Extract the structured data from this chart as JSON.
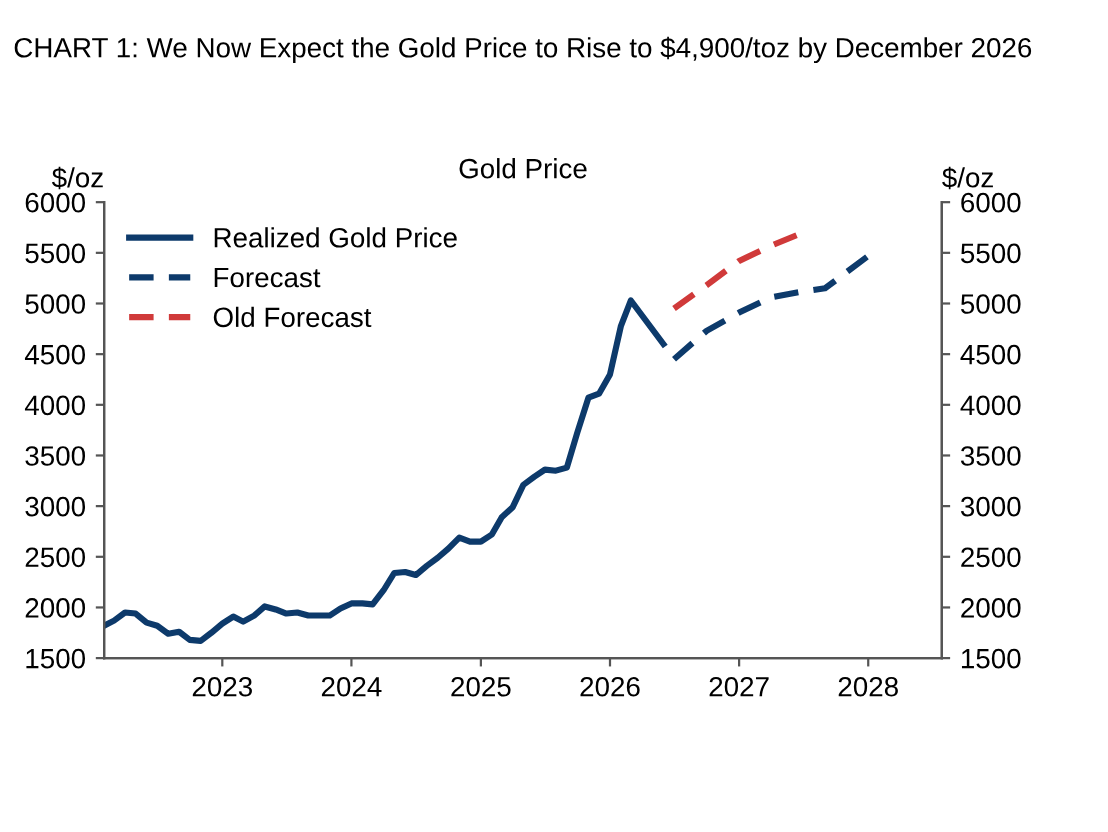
{
  "chart_data": {
    "type": "line",
    "title": "CHART 1: We Now Expect the Gold Price to Rise to $4,900/toz by December 2026",
    "subtitle": "Gold Price",
    "ylabel": "$/oz",
    "y2label": "$/oz",
    "xlim": [
      "2022-02-01",
      "2028-07-27"
    ],
    "xticks": [
      {
        "value": "2023-01-01",
        "label": "2023"
      },
      {
        "value": "2024-01-01",
        "label": "2024"
      },
      {
        "value": "2025-01-01",
        "label": "2025"
      },
      {
        "value": "2026-01-01",
        "label": "2026"
      },
      {
        "value": "2027-01-01",
        "label": "2027"
      },
      {
        "value": "2028-01-01",
        "label": "2028"
      }
    ],
    "ylim": [
      1500,
      6000
    ],
    "yticks": [
      1500,
      2000,
      2500,
      3000,
      3500,
      4000,
      4500,
      5000,
      5500,
      6000
    ],
    "y2lim": [
      1500,
      6000
    ],
    "y2ticks": [
      1500,
      2000,
      2500,
      3000,
      3500,
      4000,
      4500,
      5000,
      5500,
      6000
    ],
    "grid": false,
    "legend": "top left",
    "marker": "none",
    "series": [
      {
        "name": "Realized Gold Price",
        "color": "#0d3a6b",
        "line_style": "solid",
        "x": [
          "2022-02",
          "2022-03",
          "2022-04",
          "2022-05",
          "2022-06",
          "2022-07",
          "2022-08",
          "2022-09",
          "2022-10",
          "2022-11",
          "2022-12",
          "2023-01",
          "2023-02",
          "2023-03",
          "2023-04",
          "2023-05",
          "2023-06",
          "2023-07",
          "2023-08",
          "2023-09",
          "2023-10",
          "2023-11",
          "2023-12",
          "2024-01",
          "2024-02",
          "2024-03",
          "2024-04",
          "2024-05",
          "2024-06",
          "2024-07",
          "2024-08",
          "2024-09",
          "2024-10",
          "2024-11",
          "2024-12",
          "2025-01",
          "2025-02",
          "2025-03",
          "2025-04",
          "2025-05",
          "2025-06",
          "2025-07",
          "2025-08",
          "2025-09",
          "2025-10",
          "2025-11",
          "2025-12",
          "2026-01",
          "2026-02",
          "2026-03",
          "2026-06"
        ],
        "values": [
          1820,
          1870,
          1950,
          1940,
          1850,
          1820,
          1740,
          1760,
          1680,
          1670,
          1750,
          1840,
          1910,
          1860,
          1920,
          2010,
          1980,
          1940,
          1950,
          1920,
          1920,
          1920,
          1990,
          2040,
          2040,
          2030,
          2170,
          2340,
          2350,
          2320,
          2410,
          2490,
          2580,
          2690,
          2650,
          2650,
          2720,
          2890,
          2990,
          3210,
          3290,
          3360,
          3350,
          3380,
          3730,
          4070,
          4110,
          4300,
          4780,
          5030,
          4600
        ]
      },
      {
        "name": "Forecast",
        "color": "#0d3a6b",
        "line_style": "dashed",
        "x": [
          "2026-07",
          "2026-10",
          "2027-01",
          "2027-04",
          "2027-07",
          "2027-09",
          "2028-01"
        ],
        "values": [
          4450,
          4730,
          4910,
          5060,
          5120,
          5150,
          5470
        ]
      },
      {
        "name": "Old Forecast",
        "color": "#d03a3a",
        "line_style": "dashed",
        "x": [
          "2026-07",
          "2026-10",
          "2027-01",
          "2027-04",
          "2027-07"
        ],
        "values": [
          4950,
          5180,
          5420,
          5570,
          5700
        ]
      }
    ]
  }
}
